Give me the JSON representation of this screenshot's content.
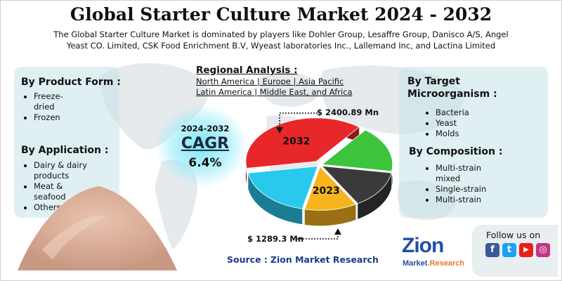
{
  "title": "Global Starter Culture Market 2024 - 2032",
  "subtitle": "The Global Starter Culture Market is dominated by players like Dohler Group, Lesaffre Group, Danisco A/S, Angel Yeast CO. Limited, CSK Food Enrichment B.V, Wyeast laboratories Inc., Lallemand Inc, and Lactina Limited",
  "product_form": {
    "title": "By Product Form :",
    "items": [
      "Freeze-dried",
      "Frozen"
    ]
  },
  "application": {
    "title": "By Application :",
    "items": [
      "Dairy & dairy products",
      "Meat & seafood",
      "Others"
    ]
  },
  "regional": {
    "title": "Regional Analysis :",
    "line1": "North America | Europe | Asia Pacific",
    "line2": "Latin America | Middle East, and Africa"
  },
  "target": {
    "title_line1": "By Target",
    "title_line2": "Microorganism :",
    "items": [
      "Bacteria",
      "Yeast",
      "Molds"
    ]
  },
  "composition": {
    "title": "By Composition :",
    "items": [
      "Multi-strain mixed",
      "Single-strain",
      "Multi-strain"
    ]
  },
  "cagr": {
    "period": "2024-2032",
    "label": "CAGR",
    "value": "6.4%"
  },
  "source": {
    "label": "Source :",
    "value": "Zion Market Research"
  },
  "follow": {
    "label": "Follow us on",
    "icons": [
      "facebook-icon",
      "twitter-icon",
      "youtube-icon",
      "instagram-icon"
    ],
    "icon_glyphs": [
      "f",
      "t",
      "▶",
      "◎"
    ],
    "icon_colors": [
      "#3b5998",
      "#1da1f2",
      "#e62117",
      "#c13584"
    ]
  },
  "logo": {
    "name": "Zion",
    "sub_a": "Market",
    "sub_b": ".Research"
  },
  "colors": {
    "red": "#e8272b",
    "green": "#3cc43c",
    "dark": "#3a3a3a",
    "orange": "#f6b51e",
    "cyan": "#29c9ee"
  },
  "chart_data": {
    "type": "pie",
    "style": "3d-exploded",
    "slices": [
      {
        "label": "2032",
        "value": 0.38,
        "color": "#e8272b"
      },
      {
        "label": "",
        "value": 0.17,
        "color": "#3cc43c"
      },
      {
        "label": "",
        "value": 0.14,
        "color": "#3a3a3a"
      },
      {
        "label": "2023",
        "value": 0.12,
        "color": "#f6b51e"
      },
      {
        "label": "",
        "value": 0.19,
        "color": "#29c9ee"
      }
    ],
    "annotations": [
      {
        "text": "$ 2400.89 Mn",
        "refers_to": "2032"
      },
      {
        "text": "$ 1289.3 Mn",
        "refers_to": "2023"
      }
    ]
  }
}
